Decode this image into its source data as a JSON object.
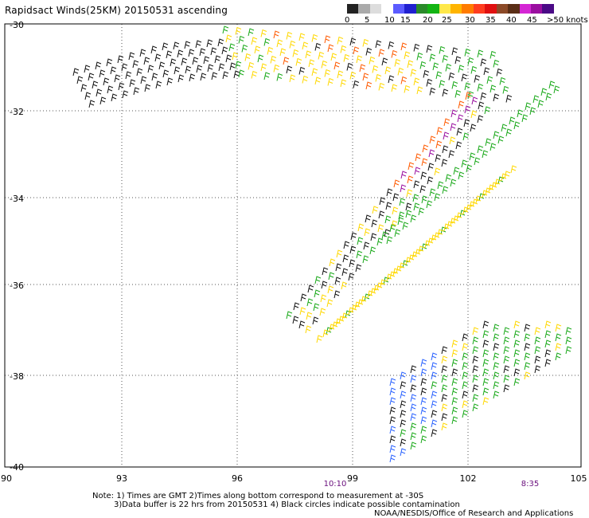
{
  "title": "Rapidsact Winds(25KM) 20150531 ascending",
  "legend": {
    "colors": [
      "#222222",
      "#aaaaaa",
      "#dddddd",
      "#ffffff",
      "#5b5bff",
      "#2020d0",
      "#2a8a2a",
      "#13b413",
      "#ffe84a",
      "#ffb400",
      "#ff7b00",
      "#ff3d1f",
      "#e01010",
      "#8c4a28",
      "#5a2e16",
      "#d426d4",
      "#9a0fa0",
      "#4a0a86"
    ],
    "labels": [
      "0",
      "5",
      "10",
      "15",
      "20",
      "25",
      "30",
      "35",
      "40",
      "45",
      ">50 knots"
    ]
  },
  "axes": {
    "y_labels": [
      "-30",
      "-32",
      "-34",
      "-36",
      "-38",
      "-40"
    ],
    "x_labels": [
      "90",
      "93",
      "96",
      "99",
      "102",
      "105"
    ]
  },
  "times": [
    "10:10",
    "8:35"
  ],
  "note": {
    "line1": "Note: 1) Times are GMT 2)Times along bottom correspond to measurement at -30S",
    "line2": "3)Data buffer is 22 hrs from 20150531 4) Black circles indicate possible contamination",
    "agency": "NOAA/NESDIS/Office of Research and Applications"
  }
}
